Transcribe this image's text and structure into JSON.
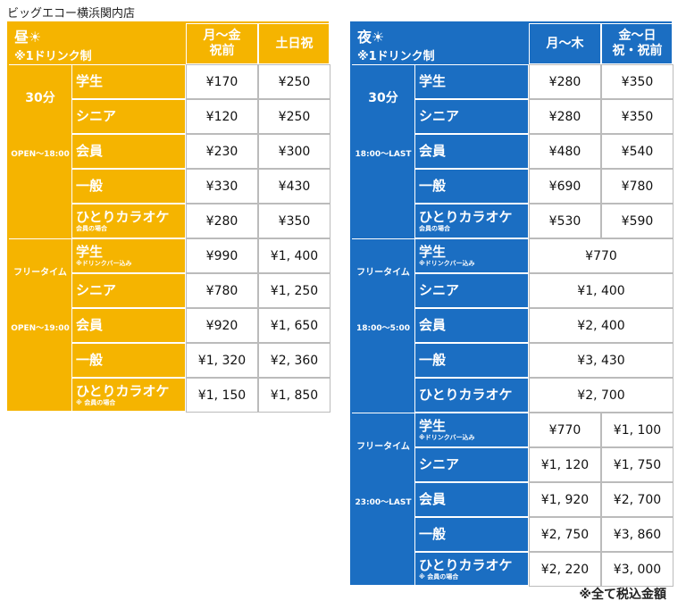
{
  "title": "ビッグエコー横浜関内店",
  "panels": [
    {
      "name": "昼☀",
      "note": "※1ドリンク制",
      "color": "#f5b400",
      "columns": [
        [
          "月～金",
          "祝前"
        ],
        [
          "土日祝"
        ]
      ],
      "sections": [
        {
          "duration": "30分",
          "hours": "OPEN～18:00",
          "rows": [
            {
              "label": "学生",
              "prices": [
                "¥170",
                "¥250"
              ]
            },
            {
              "label": "シニア",
              "prices": [
                "¥120",
                "¥250"
              ]
            },
            {
              "label": "会員",
              "prices": [
                "¥230",
                "¥300"
              ]
            },
            {
              "label": "一般",
              "prices": [
                "¥330",
                "¥430"
              ]
            },
            {
              "label": "ひとりカラオケ",
              "sub": "会員の場合",
              "prices": [
                "¥280",
                "¥350"
              ]
            }
          ]
        },
        {
          "duration": "フリータイム",
          "hours": "OPEN～19:00",
          "rows": [
            {
              "label": "学生",
              "sub": "※ドリンクバー込み",
              "prices": [
                "¥990",
                "¥1, 400"
              ]
            },
            {
              "label": "シニア",
              "prices": [
                "¥780",
                "¥1, 250"
              ]
            },
            {
              "label": "会員",
              "prices": [
                "¥920",
                "¥1, 650"
              ]
            },
            {
              "label": "一般",
              "prices": [
                "¥1, 320",
                "¥2, 360"
              ]
            },
            {
              "label": "ひとりカラオケ",
              "sub": "※ 会員の場合",
              "prices": [
                "¥1, 150",
                "¥1, 850"
              ]
            }
          ]
        }
      ]
    },
    {
      "name": "夜☀",
      "note": "※1ドリンク制",
      "color": "#1b6ec2",
      "columns": [
        [
          "月～木"
        ],
        [
          "金～日",
          "祝・祝前"
        ]
      ],
      "sections": [
        {
          "duration": "30分",
          "hours": "18:00～LAST",
          "rows": [
            {
              "label": "学生",
              "prices": [
                "¥280",
                "¥350"
              ]
            },
            {
              "label": "シニア",
              "prices": [
                "¥280",
                "¥350"
              ]
            },
            {
              "label": "会員",
              "prices": [
                "¥480",
                "¥540"
              ]
            },
            {
              "label": "一般",
              "prices": [
                "¥690",
                "¥780"
              ]
            },
            {
              "label": "ひとりカラオケ",
              "sub": "会員の場合",
              "prices": [
                "¥530",
                "¥590"
              ]
            }
          ]
        },
        {
          "duration": "フリータイム",
          "hours": "18:00～5:00",
          "rows": [
            {
              "label": "学生",
              "sub": "※ドリンクバー込み",
              "prices": [
                "¥770"
              ]
            },
            {
              "label": "シニア",
              "prices": [
                "¥1, 400"
              ]
            },
            {
              "label": "会員",
              "prices": [
                "¥2, 400"
              ]
            },
            {
              "label": "一般",
              "prices": [
                "¥3, 430"
              ]
            },
            {
              "label": "ひとりカラオケ",
              "prices": [
                "¥2, 700"
              ]
            }
          ]
        },
        {
          "duration": "フリータイム",
          "hours": "23:00～LAST",
          "rows": [
            {
              "label": "学生",
              "sub": "※ドリンクバー込み",
              "prices": [
                "¥770",
                "¥1, 100"
              ]
            },
            {
              "label": "シニア",
              "prices": [
                "¥1, 120",
                "¥1, 750"
              ]
            },
            {
              "label": "会員",
              "prices": [
                "¥1, 920",
                "¥2, 700"
              ]
            },
            {
              "label": "一般",
              "prices": [
                "¥2, 750",
                "¥3, 860"
              ]
            },
            {
              "label": "ひとりカラオケ",
              "sub": "※ 会員の場合",
              "prices": [
                "¥2, 220",
                "¥3, 000"
              ]
            }
          ]
        }
      ]
    }
  ],
  "footer": "※全て税込金額"
}
